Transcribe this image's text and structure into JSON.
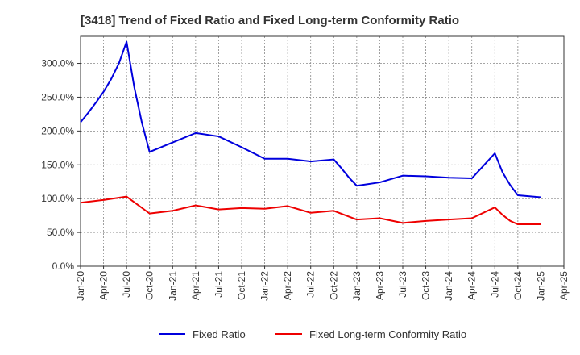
{
  "chart_data": {
    "type": "line",
    "title": "[3418]  Trend of Fixed Ratio and Fixed Long-term Conformity Ratio",
    "xlabel": "",
    "ylabel": "",
    "ylim": [
      0,
      340
    ],
    "y_ticks": [
      0,
      50,
      100,
      150,
      200,
      250,
      300
    ],
    "y_tick_labels": [
      "0.0%",
      "50.0%",
      "100.0%",
      "150.0%",
      "200.0%",
      "250.0%",
      "300.0%"
    ],
    "x_tick_labels": [
      "Jan-20",
      "Apr-20",
      "Jul-20",
      "Oct-20",
      "Jan-21",
      "Apr-21",
      "Jul-21",
      "Oct-21",
      "Jan-22",
      "Apr-22",
      "Jul-22",
      "Oct-22",
      "Jan-23",
      "Apr-23",
      "Jul-23",
      "Oct-23",
      "Jan-24",
      "Apr-24",
      "Jul-24",
      "Oct-24",
      "Jan-25",
      "Apr-25"
    ],
    "grid": true,
    "legend_position": "bottom",
    "series": [
      {
        "name": "Fixed Ratio",
        "color": "#0000dd",
        "points": [
          [
            "Jan-20",
            213
          ],
          [
            "Feb-20",
            227
          ],
          [
            "Mar-20",
            242
          ],
          [
            "Apr-20",
            258
          ],
          [
            "May-20",
            277
          ],
          [
            "Jun-20",
            300
          ],
          [
            "Jul-20",
            332
          ],
          [
            "Aug-20",
            265
          ],
          [
            "Sep-20",
            212
          ],
          [
            "Oct-20",
            169
          ],
          [
            "Jan-21",
            183
          ],
          [
            "Apr-21",
            197
          ],
          [
            "Jul-21",
            192
          ],
          [
            "Oct-21",
            176
          ],
          [
            "Jan-22",
            159
          ],
          [
            "Apr-22",
            159
          ],
          [
            "Jul-22",
            155
          ],
          [
            "Oct-22",
            158
          ],
          [
            "Nov-22",
            145
          ],
          [
            "Dec-22",
            131
          ],
          [
            "Jan-23",
            119
          ],
          [
            "Apr-23",
            124
          ],
          [
            "Jul-23",
            134
          ],
          [
            "Oct-23",
            133
          ],
          [
            "Jan-24",
            131
          ],
          [
            "Apr-24",
            130
          ],
          [
            "Jul-24",
            167
          ],
          [
            "Aug-24",
            139
          ],
          [
            "Sep-24",
            120
          ],
          [
            "Oct-24",
            105
          ],
          [
            "Jan-25",
            102
          ]
        ]
      },
      {
        "name": "Fixed Long-term Conformity Ratio",
        "color": "#ee0000",
        "points": [
          [
            "Jan-20",
            94
          ],
          [
            "Apr-20",
            98
          ],
          [
            "Jul-20",
            103
          ],
          [
            "Oct-20",
            78
          ],
          [
            "Jan-21",
            82
          ],
          [
            "Apr-21",
            90
          ],
          [
            "Jul-21",
            84
          ],
          [
            "Oct-21",
            86
          ],
          [
            "Jan-22",
            85
          ],
          [
            "Apr-22",
            89
          ],
          [
            "Jul-22",
            79
          ],
          [
            "Oct-22",
            82
          ],
          [
            "Jan-23",
            69
          ],
          [
            "Apr-23",
            71
          ],
          [
            "Jul-23",
            64
          ],
          [
            "Oct-23",
            67
          ],
          [
            "Jan-24",
            69
          ],
          [
            "Apr-24",
            71
          ],
          [
            "Jul-24",
            87
          ],
          [
            "Aug-24",
            76
          ],
          [
            "Sep-24",
            67
          ],
          [
            "Oct-24",
            62
          ],
          [
            "Jan-25",
            62
          ]
        ]
      }
    ]
  }
}
